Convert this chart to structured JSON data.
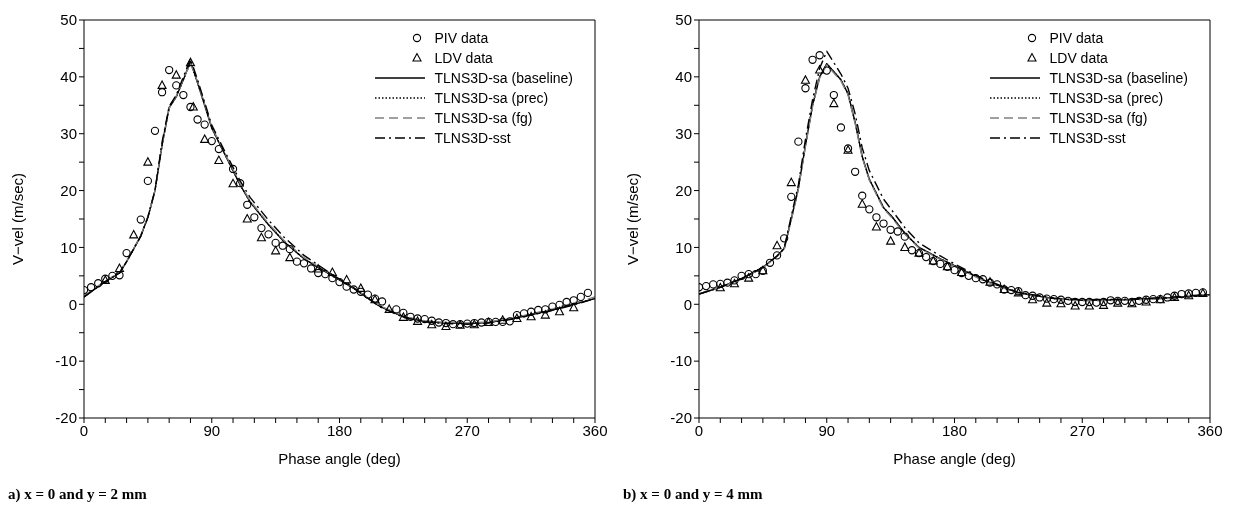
{
  "chart_data": [
    {
      "type": "line",
      "xlabel": "Phase angle (deg)",
      "ylabel": "V−vel (m/sec)",
      "xlim": [
        0,
        360
      ],
      "ylim": [
        -20,
        50
      ],
      "xticks": [
        0,
        {
          "value": 15,
          "label": null
        },
        {
          "value": 30,
          "label": null
        },
        {
          "value": 45,
          "label": null
        },
        {
          "value": 60,
          "label": null
        },
        {
          "value": 75,
          "label": null
        },
        90,
        {
          "value": 105,
          "label": null
        },
        {
          "value": 120,
          "label": null
        },
        {
          "value": 135,
          "label": null
        },
        {
          "value": 150,
          "label": null
        },
        {
          "value": 165,
          "label": null
        },
        180,
        {
          "value": 195,
          "label": null
        },
        {
          "value": 210,
          "label": null
        },
        {
          "value": 225,
          "label": null
        },
        {
          "value": 240,
          "label": null
        },
        {
          "value": 255,
          "label": null
        },
        270,
        {
          "value": 285,
          "label": null
        },
        {
          "value": 300,
          "label": null
        },
        {
          "value": 315,
          "label": null
        },
        {
          "value": 330,
          "label": null
        },
        {
          "value": 345,
          "label": null
        },
        360
      ],
      "yticks": [
        -20,
        {
          "value": -15,
          "label": null
        },
        -10,
        {
          "value": -5,
          "label": null
        },
        0,
        {
          "value": 5,
          "label": null
        },
        10,
        {
          "value": 15,
          "label": null
        },
        20,
        {
          "value": 25,
          "label": null
        },
        30,
        {
          "value": 35,
          "label": null
        },
        40,
        {
          "value": 45,
          "label": null
        },
        50
      ],
      "legend": "top right",
      "annotations": [
        "a) x = 0 and y = 2 mm"
      ],
      "series": [
        {
          "name": "PIV data",
          "type": "scatter",
          "marker": "circle",
          "color": "#000000",
          "x": [
            0,
            5,
            10,
            15,
            20,
            25,
            30,
            40,
            45,
            50,
            55,
            60,
            65,
            70,
            75,
            80,
            85,
            90,
            95,
            105,
            110,
            115,
            120,
            125,
            130,
            135,
            140,
            145,
            150,
            155,
            160,
            165,
            170,
            175,
            180,
            185,
            190,
            195,
            200,
            205,
            210,
            220,
            225,
            230,
            235,
            240,
            245,
            250,
            255,
            260,
            265,
            270,
            275,
            280,
            285,
            290,
            295,
            300,
            305,
            310,
            315,
            320,
            325,
            330,
            335,
            340,
            345,
            350,
            355
          ],
          "values": [
            2.5,
            3.0,
            3.7,
            4.5,
            5.0,
            5.1,
            9.0,
            14.9,
            21.7,
            30.5,
            37.3,
            41.2,
            38.5,
            36.8,
            34.7,
            32.5,
            31.6,
            28.7,
            27.3,
            23.8,
            21.3,
            17.5,
            15.3,
            13.4,
            12.3,
            10.8,
            10.3,
            9.7,
            7.5,
            7.2,
            6.3,
            5.5,
            5.3,
            4.6,
            3.9,
            3.1,
            2.6,
            2.2,
            1.7,
            1.0,
            0.5,
            -0.9,
            -1.5,
            -2.2,
            -2.5,
            -2.6,
            -2.9,
            -3.2,
            -3.3,
            -3.5,
            -3.5,
            -3.4,
            -3.3,
            -3.2,
            -3.1,
            -3.1,
            -3.1,
            -3.0,
            -1.9,
            -1.6,
            -1.3,
            -1.0,
            -0.9,
            -0.4,
            -0.1,
            0.4,
            0.7,
            1.3,
            2.0
          ]
        },
        {
          "name": "LDV data",
          "type": "scatter",
          "marker": "triangle",
          "color": "#000000",
          "x": [
            15,
            25,
            35,
            45,
            55,
            65,
            75,
            77,
            85,
            95,
            105,
            115,
            125,
            135,
            145,
            165,
            175,
            185,
            195,
            205,
            215,
            225,
            235,
            245,
            255,
            265,
            275,
            285,
            295,
            305,
            315,
            325,
            335,
            345
          ],
          "values": [
            4.2,
            6.3,
            12.2,
            25.0,
            38.5,
            40.3,
            42.5,
            34.7,
            29.0,
            25.3,
            21.2,
            15.0,
            11.7,
            9.4,
            8.2,
            6.2,
            5.6,
            4.3,
            2.8,
            0.8,
            -0.9,
            -2.3,
            -3.0,
            -3.6,
            -3.9,
            -3.7,
            -3.6,
            -3.2,
            -2.8,
            -2.5,
            -2.2,
            -1.9,
            -1.3,
            -0.6
          ]
        },
        {
          "name": "TLNS3D-sa (baseline)",
          "type": "line",
          "line_style": "solid",
          "marker": "none",
          "color": "#000000",
          "x": [
            0,
            15,
            25,
            30,
            40,
            45,
            50,
            55,
            60,
            65,
            70,
            75,
            80,
            85,
            90,
            100,
            110,
            117,
            130,
            141,
            155,
            175,
            190,
            208,
            225,
            240,
            255,
            270,
            285,
            300,
            315,
            330,
            345,
            360
          ],
          "values": [
            1.3,
            4.0,
            5.5,
            7.5,
            12,
            15.3,
            20,
            28,
            34.6,
            36.5,
            39.5,
            42.7,
            39,
            35,
            31,
            26,
            21,
            18,
            14,
            11,
            8,
            5,
            2.8,
            -0.3,
            -2.2,
            -3,
            -3.3,
            -3.4,
            -3.2,
            -2.6,
            -1.8,
            -1.0,
            0,
            1.0
          ]
        },
        {
          "name": "TLNS3D-sa (prec)",
          "type": "line",
          "line_style": "dotted",
          "marker": "none",
          "color": "#000000",
          "x": [
            0,
            15,
            25,
            30,
            40,
            45,
            50,
            55,
            60,
            65,
            70,
            75,
            80,
            85,
            90,
            100,
            110,
            117,
            130,
            141,
            155,
            175,
            190,
            208,
            225,
            240,
            255,
            270,
            285,
            300,
            315,
            330,
            345,
            360
          ],
          "values": [
            1.3,
            4.0,
            5.5,
            7.5,
            12,
            15.3,
            20,
            28,
            34.6,
            36.5,
            39.5,
            42.5,
            39,
            35,
            31,
            26,
            21,
            18,
            14,
            11,
            8,
            5,
            2.8,
            -0.3,
            -2.2,
            -3,
            -3.3,
            -3.4,
            -3.2,
            -2.6,
            -1.8,
            -1.0,
            0,
            1.0
          ]
        },
        {
          "name": "TLNS3D-sa (fg)",
          "type": "line",
          "line_style": "dashed",
          "marker": "none",
          "color": "#808080",
          "x": [
            0,
            15,
            25,
            30,
            40,
            45,
            50,
            55,
            60,
            65,
            70,
            75,
            80,
            85,
            90,
            100,
            110,
            117,
            130,
            141,
            155,
            175,
            190,
            208,
            225,
            240,
            255,
            270,
            285,
            300,
            315,
            330,
            345,
            360
          ],
          "values": [
            1.5,
            4.1,
            5.6,
            7.6,
            12.1,
            15.4,
            20,
            28,
            34.5,
            36.6,
            39.6,
            42.4,
            39.2,
            35.2,
            31.2,
            26.2,
            21.2,
            18.2,
            14.2,
            11.2,
            8.2,
            5.1,
            2.9,
            -0.2,
            -2.1,
            -2.9,
            -3.2,
            -3.3,
            -3.1,
            -2.5,
            -1.7,
            -0.8,
            0.2,
            1.3
          ]
        },
        {
          "name": "TLNS3D-sst",
          "type": "line",
          "line_style": "dashdot",
          "marker": "none",
          "color": "#000000",
          "x": [
            0,
            15,
            25,
            30,
            40,
            45,
            50,
            55,
            60,
            65,
            70,
            75,
            80,
            85,
            90,
            100,
            110,
            117,
            130,
            141,
            155,
            175,
            190,
            208,
            225,
            240,
            255,
            270,
            285,
            300,
            315,
            330,
            345,
            360
          ],
          "values": [
            1.3,
            4.0,
            5.5,
            7.5,
            12,
            15.3,
            20,
            28.5,
            34.8,
            36.8,
            40,
            43.2,
            39.5,
            35.5,
            31.5,
            26.5,
            21.7,
            18.8,
            14.8,
            11.8,
            8.6,
            5.2,
            2.9,
            -0.4,
            -2.3,
            -3.1,
            -3.4,
            -3.5,
            -3.3,
            -2.7,
            -1.9,
            -1.1,
            -0.1,
            1.0
          ]
        }
      ]
    },
    {
      "type": "line",
      "xlabel": "Phase angle (deg)",
      "ylabel": "V−vel (m/sec)",
      "xlim": [
        0,
        360
      ],
      "ylim": [
        -20,
        50
      ],
      "xticks": [
        0,
        {
          "value": 15,
          "label": null
        },
        {
          "value": 30,
          "label": null
        },
        {
          "value": 45,
          "label": null
        },
        {
          "value": 60,
          "label": null
        },
        {
          "value": 75,
          "label": null
        },
        90,
        {
          "value": 105,
          "label": null
        },
        {
          "value": 120,
          "label": null
        },
        {
          "value": 135,
          "label": null
        },
        {
          "value": 150,
          "label": null
        },
        {
          "value": 165,
          "label": null
        },
        180,
        {
          "value": 195,
          "label": null
        },
        {
          "value": 210,
          "label": null
        },
        {
          "value": 225,
          "label": null
        },
        {
          "value": 240,
          "label": null
        },
        {
          "value": 255,
          "label": null
        },
        270,
        {
          "value": 285,
          "label": null
        },
        {
          "value": 300,
          "label": null
        },
        {
          "value": 315,
          "label": null
        },
        {
          "value": 330,
          "label": null
        },
        {
          "value": 345,
          "label": null
        },
        360
      ],
      "yticks": [
        -20,
        {
          "value": -15,
          "label": null
        },
        -10,
        {
          "value": -5,
          "label": null
        },
        0,
        {
          "value": 5,
          "label": null
        },
        10,
        {
          "value": 15,
          "label": null
        },
        20,
        {
          "value": 25,
          "label": null
        },
        30,
        {
          "value": 35,
          "label": null
        },
        40,
        {
          "value": 45,
          "label": null
        },
        50
      ],
      "legend": "top right",
      "annotations": [
        "b) x = 0 and y = 4 mm"
      ],
      "series": [
        {
          "name": "PIV data",
          "type": "scatter",
          "marker": "circle",
          "color": "#000000",
          "x": [
            0,
            5,
            10,
            15,
            20,
            25,
            30,
            35,
            40,
            45,
            50,
            55,
            60,
            65,
            70,
            75,
            80,
            85,
            90,
            95,
            100,
            105,
            110,
            115,
            120,
            125,
            130,
            135,
            140,
            145,
            150,
            155,
            160,
            165,
            170,
            175,
            180,
            185,
            190,
            195,
            200,
            205,
            210,
            215,
            220,
            225,
            230,
            235,
            240,
            245,
            250,
            255,
            260,
            265,
            270,
            275,
            280,
            285,
            290,
            295,
            300,
            305,
            310,
            315,
            320,
            325,
            330,
            335,
            340,
            345,
            350,
            355
          ],
          "values": [
            3.0,
            3.2,
            3.5,
            3.6,
            3.8,
            4.2,
            5.0,
            5.3,
            5.3,
            5.9,
            7.3,
            8.6,
            11.6,
            18.9,
            28.6,
            38.0,
            43.0,
            43.8,
            41.1,
            36.8,
            31.1,
            27.4,
            23.3,
            19.1,
            16.7,
            15.3,
            14.2,
            13.1,
            12.8,
            11.9,
            9.5,
            9.0,
            8.3,
            7.6,
            7.1,
            6.6,
            6.0,
            5.5,
            5.0,
            4.6,
            4.4,
            3.8,
            3.5,
            2.6,
            2.5,
            2.3,
            1.6,
            1.5,
            1.2,
            1.0,
            0.9,
            0.8,
            0.6,
            0.4,
            0.4,
            0.4,
            0.3,
            0.4,
            0.7,
            0.6,
            0.6,
            0.4,
            0.6,
            0.8,
            0.9,
            0.9,
            1.2,
            1.5,
            1.8,
            1.9,
            2.0,
            2.1
          ]
        },
        {
          "name": "LDV data",
          "type": "scatter",
          "marker": "triangle",
          "color": "#000000",
          "x": [
            15,
            25,
            35,
            45,
            55,
            65,
            75,
            85,
            95,
            105,
            115,
            125,
            135,
            145,
            155,
            165,
            175,
            185,
            205,
            215,
            225,
            235,
            245,
            255,
            265,
            275,
            285,
            295,
            305,
            315,
            325,
            335,
            345,
            355
          ],
          "values": [
            2.9,
            3.6,
            4.6,
            5.9,
            10.3,
            21.4,
            39.4,
            41.2,
            35.3,
            27.1,
            17.6,
            13.6,
            11.1,
            10.0,
            9.0,
            7.6,
            6.6,
            5.6,
            3.9,
            2.6,
            2.0,
            0.8,
            0.2,
            0.1,
            -0.3,
            -0.3,
            -0.2,
            0.2,
            0.1,
            0.4,
            0.8,
            1.2,
            1.5,
            1.9
          ]
        },
        {
          "name": "TLNS3D-sa (baseline)",
          "type": "line",
          "line_style": "solid",
          "marker": "none",
          "color": "#000000",
          "x": [
            0,
            15,
            30,
            45,
            55,
            60,
            65,
            70,
            75,
            80,
            85,
            90,
            100,
            105,
            110,
            115,
            120,
            130,
            136,
            145,
            155,
            170,
            180,
            200,
            225,
            250,
            270,
            300,
            330,
            360
          ],
          "values": [
            1.8,
            3,
            4.5,
            6.5,
            8.5,
            9.8,
            15,
            20.4,
            28,
            35,
            40,
            42.3,
            39.5,
            37,
            32,
            26,
            22,
            17,
            15.4,
            12.5,
            10,
            8,
            6.8,
            4.3,
            2.0,
            1.0,
            0.7,
            0.8,
            1.1,
            1.7
          ]
        },
        {
          "name": "TLNS3D-sa (prec)",
          "type": "line",
          "line_style": "dotted",
          "marker": "none",
          "color": "#000000",
          "x": [
            0,
            15,
            30,
            45,
            55,
            60,
            65,
            70,
            75,
            80,
            85,
            90,
            100,
            105,
            110,
            115,
            120,
            130,
            136,
            145,
            155,
            170,
            180,
            200,
            225,
            250,
            270,
            300,
            330,
            360
          ],
          "values": [
            1.8,
            3,
            4.5,
            6.5,
            8.5,
            9.8,
            15,
            20.4,
            28,
            35,
            40,
            42.3,
            39.5,
            37,
            32,
            26,
            22,
            17,
            15.4,
            12.5,
            10,
            8,
            6.8,
            4.3,
            2.0,
            1.0,
            0.7,
            0.8,
            1.1,
            1.7
          ]
        },
        {
          "name": "TLNS3D-sa (fg)",
          "type": "line",
          "line_style": "dashed",
          "marker": "none",
          "color": "#808080",
          "x": [
            0,
            15,
            30,
            45,
            55,
            60,
            65,
            70,
            75,
            80,
            85,
            90,
            100,
            105,
            110,
            115,
            120,
            130,
            136,
            145,
            155,
            170,
            180,
            200,
            225,
            250,
            270,
            300,
            330,
            360
          ],
          "values": [
            1.8,
            3,
            4.4,
            6.4,
            8.4,
            9.6,
            14.8,
            20.2,
            27.8,
            34.8,
            39.8,
            42.1,
            39.3,
            36.8,
            31.8,
            25.8,
            21.8,
            16.8,
            15.2,
            12.3,
            9.9,
            7.9,
            6.7,
            4.2,
            1.9,
            0.9,
            0.6,
            0.7,
            1.0,
            1.6
          ]
        },
        {
          "name": "TLNS3D-sst",
          "type": "line",
          "line_style": "dashdot",
          "marker": "none",
          "color": "#000000",
          "x": [
            0,
            15,
            30,
            45,
            55,
            60,
            65,
            70,
            75,
            80,
            85,
            90,
            100,
            105,
            110,
            115,
            120,
            130,
            136,
            145,
            155,
            170,
            180,
            200,
            225,
            250,
            270,
            300,
            330,
            360
          ],
          "values": [
            1.8,
            3,
            4.5,
            6.5,
            8.5,
            9.8,
            15.5,
            21,
            29,
            36,
            41.5,
            44.5,
            40.5,
            38,
            33.5,
            27.5,
            23.5,
            18.5,
            16.5,
            13.5,
            10.8,
            8.5,
            7.1,
            4.5,
            2.1,
            1.1,
            0.8,
            0.9,
            1.2,
            1.8
          ]
        }
      ]
    }
  ]
}
